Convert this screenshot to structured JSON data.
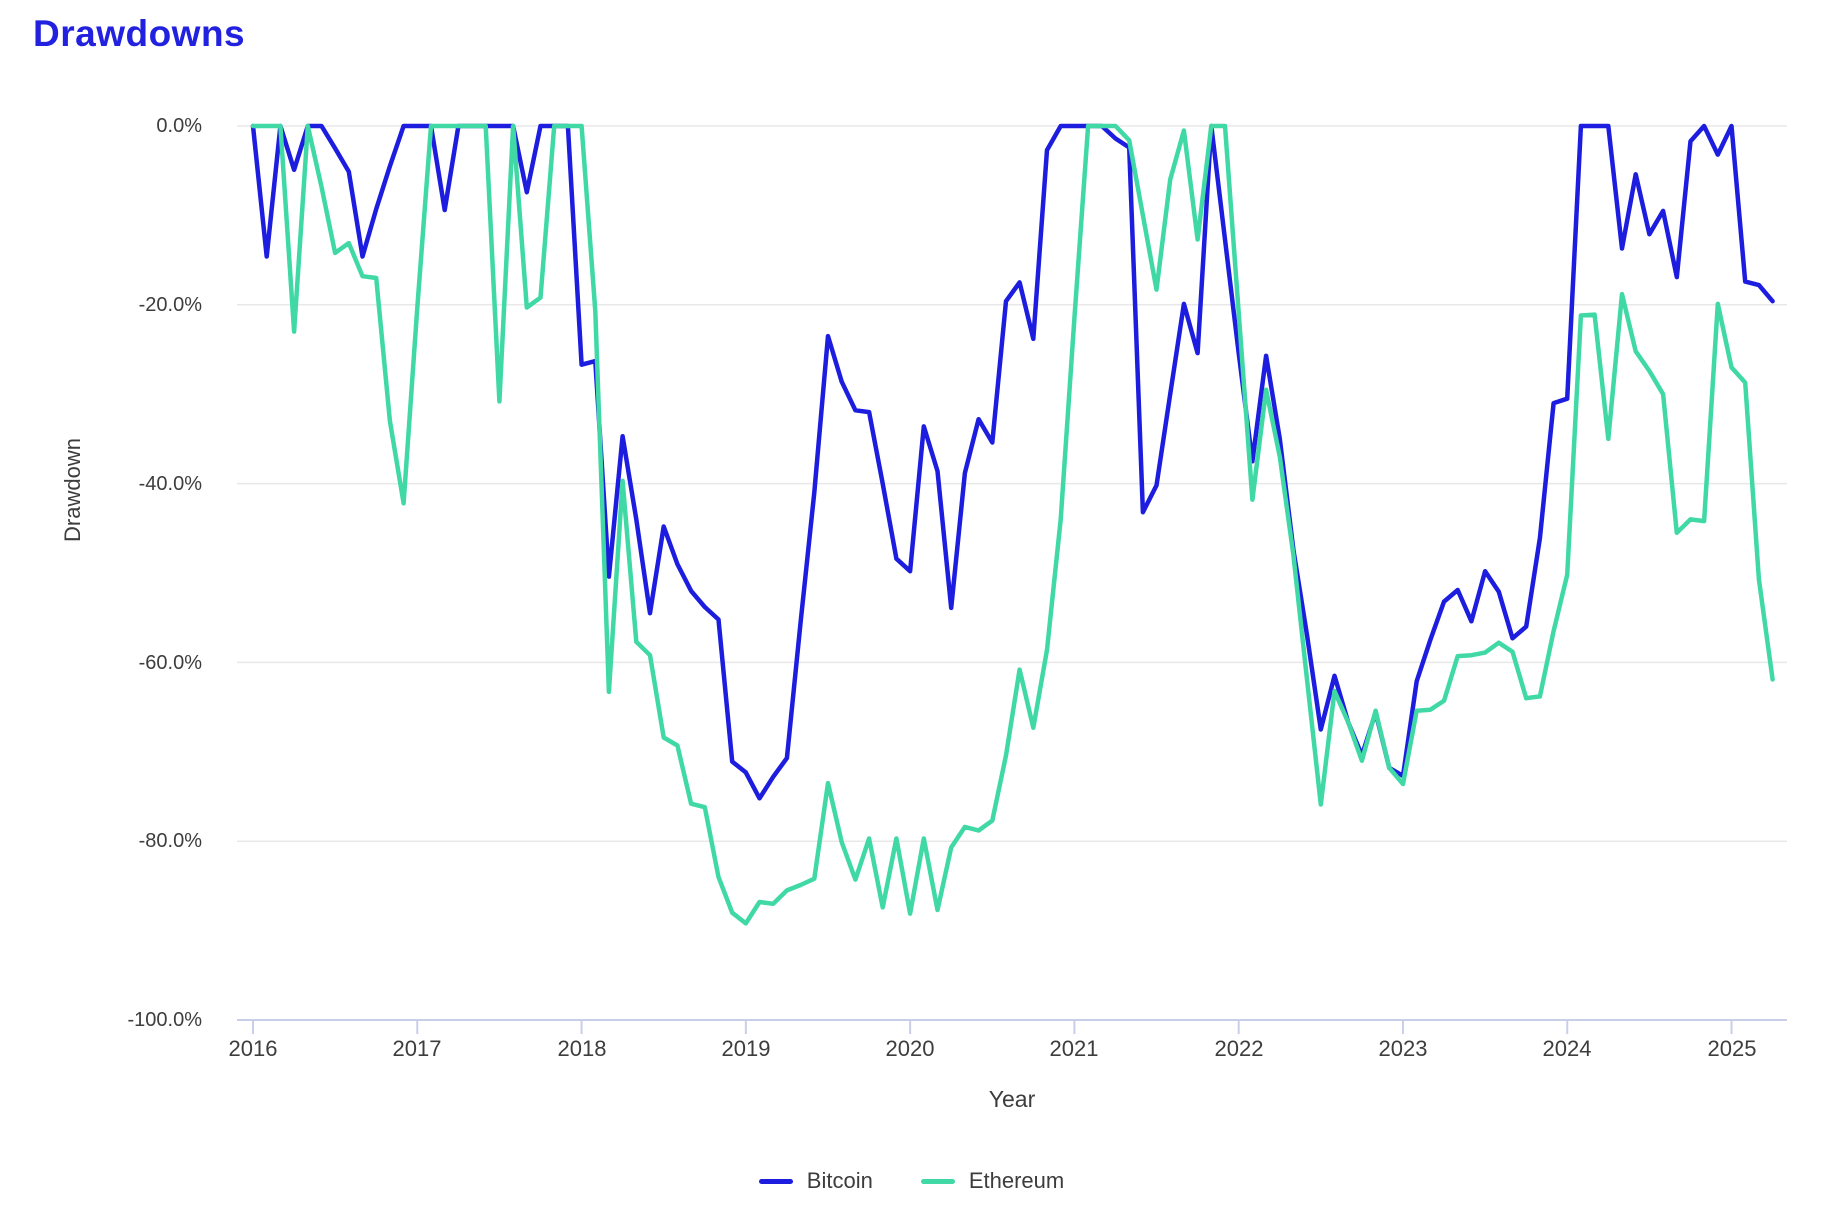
{
  "page": {
    "title": "Drawdowns",
    "title_color": "#2121df"
  },
  "axes": {
    "y_axis_label": "Drawdown",
    "x_axis_label": "Year",
    "y_tick_labels": [
      "0.0%",
      "-20.0%",
      "-40.0%",
      "-60.0%",
      "-80.0%",
      "-100.0%"
    ],
    "x_tick_labels": [
      "2016",
      "2017",
      "2018",
      "2019",
      "2020",
      "2021",
      "2022",
      "2023",
      "2024",
      "2025"
    ]
  },
  "legend": {
    "items": [
      {
        "label": "Bitcoin",
        "color": "#1d1de0"
      },
      {
        "label": "Ethereum",
        "color": "#40d9a6"
      }
    ]
  },
  "colors": {
    "grid": "#e8e8e8",
    "axis_line": "#c9cfe8",
    "tick_text": "#3d3d3d",
    "background": "#ffffff"
  },
  "chart_data": {
    "type": "line",
    "title": "Drawdowns",
    "xlabel": "Year",
    "ylabel": "Drawdown",
    "ylim": [
      -100,
      0
    ],
    "grid": true,
    "legend_position": "bottom",
    "y_tick_values": [
      0,
      -20,
      -40,
      -60,
      -80,
      -100
    ],
    "x_year_ticks": [
      2016,
      2017,
      2018,
      2019,
      2020,
      2021,
      2022,
      2023,
      2024,
      2025
    ],
    "x": [
      "2016-01",
      "2016-02",
      "2016-03",
      "2016-04",
      "2016-05",
      "2016-06",
      "2016-07",
      "2016-08",
      "2016-09",
      "2016-10",
      "2016-11",
      "2016-12",
      "2017-01",
      "2017-02",
      "2017-03",
      "2017-04",
      "2017-05",
      "2017-06",
      "2017-07",
      "2017-08",
      "2017-09",
      "2017-10",
      "2017-11",
      "2017-12",
      "2018-01",
      "2018-02",
      "2018-03",
      "2018-04",
      "2018-05",
      "2018-06",
      "2018-07",
      "2018-08",
      "2018-09",
      "2018-10",
      "2018-11",
      "2018-12",
      "2019-01",
      "2019-02",
      "2019-03",
      "2019-04",
      "2019-05",
      "2019-06",
      "2019-07",
      "2019-08",
      "2019-09",
      "2019-10",
      "2019-11",
      "2019-12",
      "2020-01",
      "2020-02",
      "2020-03",
      "2020-04",
      "2020-05",
      "2020-06",
      "2020-07",
      "2020-08",
      "2020-09",
      "2020-10",
      "2020-11",
      "2020-12",
      "2021-01",
      "2021-02",
      "2021-03",
      "2021-04",
      "2021-05",
      "2021-06",
      "2021-07",
      "2021-08",
      "2021-09",
      "2021-10",
      "2021-11",
      "2021-12",
      "2022-01",
      "2022-02",
      "2022-03",
      "2022-04",
      "2022-05",
      "2022-06",
      "2022-07",
      "2022-08",
      "2022-09",
      "2022-10",
      "2022-11",
      "2022-12",
      "2023-01",
      "2023-02",
      "2023-03",
      "2023-04",
      "2023-05",
      "2023-06",
      "2023-07",
      "2023-08",
      "2023-09",
      "2023-10",
      "2023-11",
      "2023-12",
      "2024-01",
      "2024-02",
      "2024-03",
      "2024-04",
      "2024-05",
      "2024-06",
      "2024-07",
      "2024-08",
      "2024-09",
      "2024-10",
      "2024-11",
      "2024-12",
      "2025-01",
      "2025-02",
      "2025-03",
      "2025-04"
    ],
    "series": [
      {
        "name": "Bitcoin",
        "color": "#1d1de0",
        "values": [
          0,
          -14.6,
          0,
          -4.9,
          0,
          0,
          -2.5,
          -5.1,
          -14.6,
          -9.3,
          -4.5,
          0,
          0,
          0,
          -9.4,
          0,
          0,
          0,
          0,
          0,
          -7.4,
          0,
          0,
          0,
          -26.7,
          -26.3,
          -50.4,
          -34.7,
          -44.0,
          -54.5,
          -44.8,
          -49.0,
          -52.0,
          -53.8,
          -55.2,
          -71.1,
          -72.3,
          -75.2,
          -72.8,
          -70.7,
          -55.5,
          -41.0,
          -23.5,
          -28.6,
          -31.8,
          -32.0,
          -40.0,
          -48.4,
          -49.8,
          -33.6,
          -38.6,
          -53.9,
          -38.8,
          -32.8,
          -35.4,
          -19.6,
          -17.5,
          -23.8,
          -2.7,
          0,
          0,
          0,
          0,
          -1.4,
          -2.4,
          -43.2,
          -40.2,
          -30.0,
          -19.9,
          -25.4,
          0,
          -12.7,
          -25.4,
          -37.5,
          -25.7,
          -35.0,
          -47.4,
          -57.0,
          -67.5,
          -61.5,
          -66.7,
          -70.4,
          -65.6,
          -71.8,
          -72.7,
          -62.1,
          -57.5,
          -53.2,
          -51.9,
          -55.4,
          -49.8,
          -52.1,
          -57.3,
          -56.0,
          -46.1,
          -31.0,
          -30.5,
          0,
          0,
          0,
          -13.7,
          -5.4,
          -12.1,
          -9.5,
          -16.9,
          -1.7,
          0,
          -3.2,
          0,
          -17.4,
          -17.8,
          -19.6
        ]
      },
      {
        "name": "Ethereum",
        "color": "#40d9a6",
        "values": [
          0,
          0,
          0,
          -23.0,
          0,
          -6.8,
          -14.2,
          -13.1,
          -16.8,
          -17.0,
          -33.0,
          -42.2,
          -20.3,
          0,
          0,
          0,
          0,
          0,
          -30.8,
          0,
          -20.3,
          -19.2,
          0,
          0,
          0,
          -20.7,
          -63.3,
          -39.7,
          -57.7,
          -59.2,
          -68.4,
          -69.3,
          -75.8,
          -76.2,
          -84.0,
          -88.0,
          -89.2,
          -86.8,
          -87.0,
          -85.5,
          -84.9,
          -84.2,
          -73.5,
          -80.1,
          -84.3,
          -79.7,
          -87.4,
          -79.7,
          -88.1,
          -79.7,
          -87.7,
          -80.7,
          -78.4,
          -78.8,
          -77.7,
          -70.4,
          -60.8,
          -67.3,
          -58.6,
          -44.0,
          -21.5,
          0,
          0,
          0,
          -1.6,
          -10.0,
          -18.3,
          -6.0,
          -0.5,
          -12.7,
          0,
          0,
          -20.9,
          -41.8,
          -29.5,
          -37.0,
          -48.0,
          -62.0,
          -75.9,
          -63.2,
          -66.7,
          -71.0,
          -65.4,
          -71.8,
          -73.6,
          -65.4,
          -65.3,
          -64.3,
          -59.3,
          -59.2,
          -58.9,
          -57.8,
          -58.8,
          -64.0,
          -63.8,
          -56.5,
          -50.2,
          -21.2,
          -21.1,
          -35.0,
          -18.8,
          -25.2,
          -27.4,
          -30.0,
          -45.5,
          -44.0,
          -44.2,
          -19.9,
          -27.0,
          -28.7,
          -50.7,
          -61.9
        ]
      }
    ]
  }
}
